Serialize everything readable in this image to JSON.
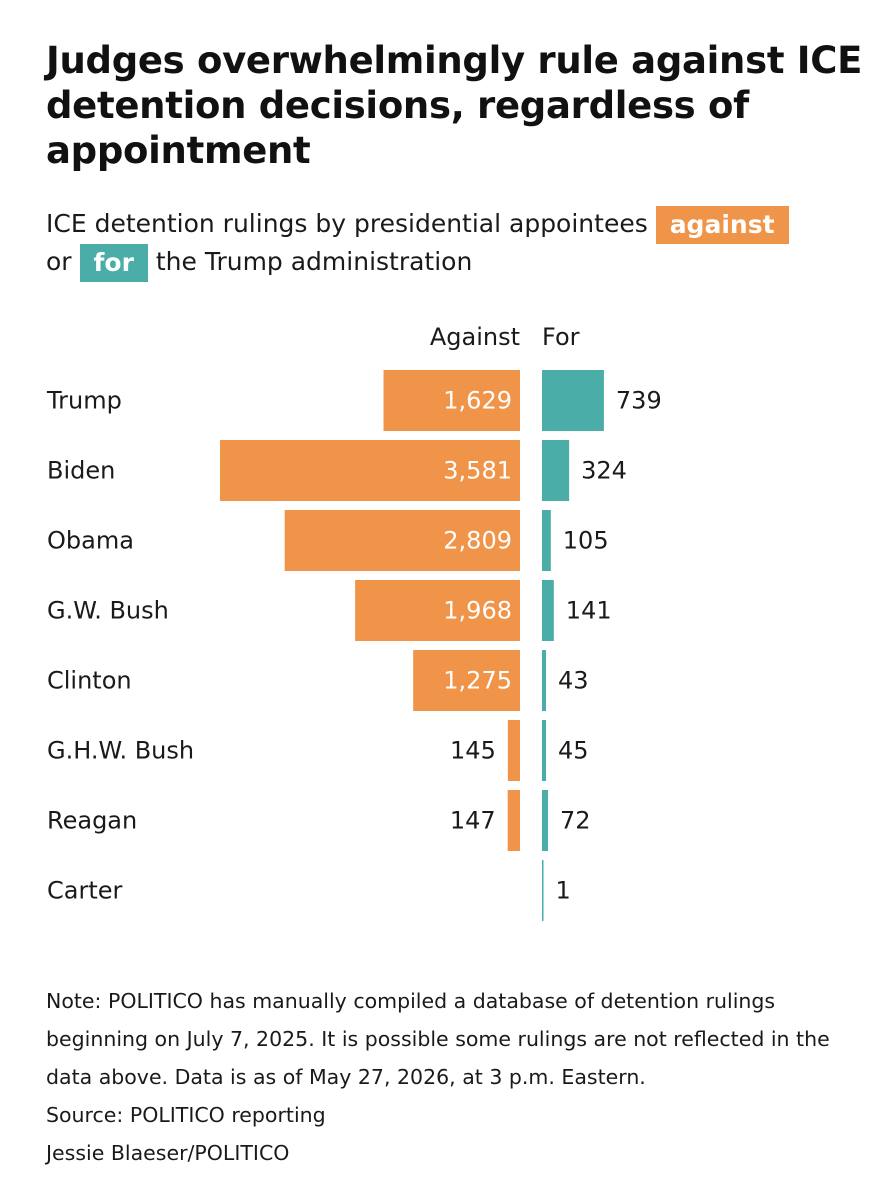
{
  "title": "Judges overwhelmingly rule against ICE detention decisions, regardless of appointment",
  "subtitle": {
    "part1": "ICE detention rulings by presidential appointees ",
    "chip_against": "against",
    "part2": " or ",
    "chip_for": "for",
    "part3": " the Trump administration"
  },
  "colors": {
    "against": "#f0944a",
    "for": "#4aada7"
  },
  "chart_data": {
    "type": "bar",
    "orientation": "horizontal-diverging",
    "column_headers": {
      "against": "Against",
      "for": "For"
    },
    "categories": [
      "Trump",
      "Biden",
      "Obama",
      "G.W. Bush",
      "Clinton",
      "G.H.W. Bush",
      "Reagan",
      "Carter"
    ],
    "series": [
      {
        "name": "Against",
        "values": [
          1629,
          3581,
          2809,
          1968,
          1275,
          145,
          147,
          null
        ],
        "labels": [
          "1,629",
          "3,581",
          "2,809",
          "1,968",
          "1,275",
          "145",
          "147",
          ""
        ]
      },
      {
        "name": "For",
        "values": [
          739,
          324,
          105,
          141,
          43,
          45,
          72,
          1
        ],
        "labels": [
          "739",
          "324",
          "105",
          "141",
          "43",
          "45",
          "72",
          "1"
        ]
      }
    ],
    "grid": false,
    "legend": "inline in subtitle"
  },
  "footer": {
    "note": "Note: POLITICO has manually compiled a database of detention rulings beginning on July 7, 2025. It is possible some rulings are not reflected in the data above. Data is as of May 27, 2026, at 3 p.m. Eastern.",
    "source": "Source: POLITICO reporting",
    "credit": "Jessie Blaeser/POLITICO"
  }
}
